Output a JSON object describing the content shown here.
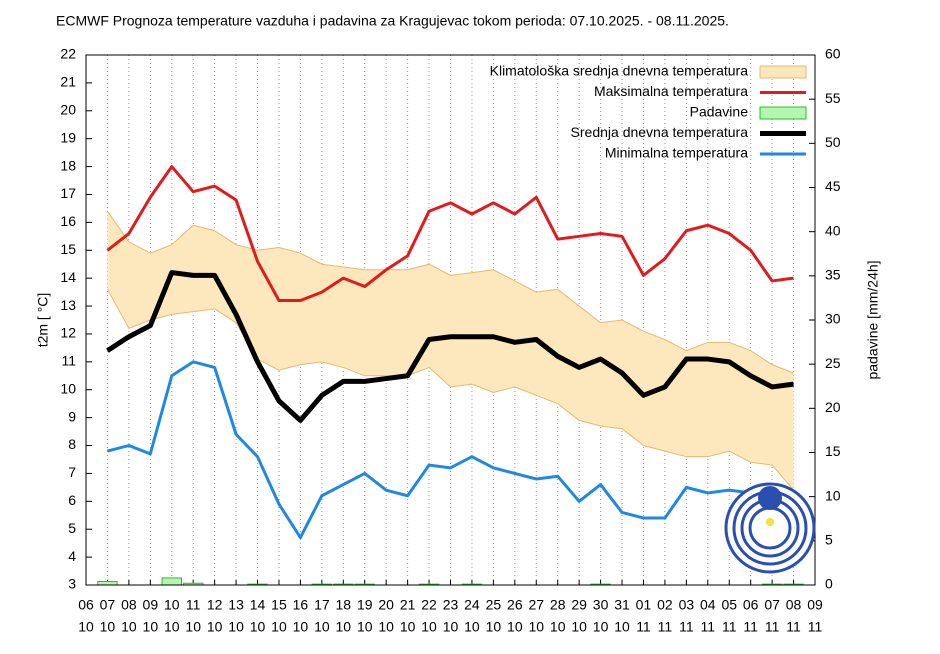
{
  "chart_data": {
    "type": "line",
    "title": "ECMWF Prognoza temperature vazduha i padavina za Kragujevac tokom perioda: 07.10.2025. - 08.11.2025.",
    "ylabel": "t2m [ °C]",
    "y2label": "padavine [mm/24h]",
    "x_days": [
      "06",
      "07",
      "08",
      "09",
      "10",
      "11",
      "12",
      "13",
      "14",
      "15",
      "16",
      "17",
      "18",
      "19",
      "20",
      "21",
      "22",
      "23",
      "24",
      "25",
      "26",
      "27",
      "28",
      "29",
      "30",
      "31",
      "01",
      "02",
      "03",
      "04",
      "05",
      "06",
      "07",
      "08",
      "09"
    ],
    "x_months": [
      "10",
      "10",
      "10",
      "10",
      "10",
      "10",
      "10",
      "10",
      "10",
      "10",
      "10",
      "10",
      "10",
      "10",
      "10",
      "10",
      "10",
      "10",
      "10",
      "10",
      "10",
      "10",
      "10",
      "10",
      "10",
      "10",
      "11",
      "11",
      "11",
      "11",
      "11",
      "11",
      "11",
      "11",
      "11"
    ],
    "ylim": [
      3,
      22
    ],
    "yticks": [
      3,
      4,
      5,
      6,
      7,
      8,
      9,
      10,
      11,
      12,
      13,
      14,
      15,
      16,
      17,
      18,
      19,
      20,
      21,
      22
    ],
    "y2lim": [
      0,
      60
    ],
    "y2ticks": [
      0,
      5,
      10,
      15,
      20,
      25,
      30,
      35,
      40,
      45,
      50,
      55,
      60
    ],
    "grid": "x",
    "legend": "top-right",
    "series": [
      {
        "name": "Klimatološka srednja dnevna temperatura",
        "type": "band",
        "color": "#fde7bd",
        "edge": "#e9b86a",
        "upper": [
          null,
          16.4,
          15.3,
          14.9,
          15.2,
          15.9,
          15.7,
          15.2,
          15.0,
          15.1,
          14.9,
          14.5,
          14.4,
          14.3,
          14.3,
          14.3,
          14.5,
          14.1,
          14.2,
          14.3,
          13.9,
          13.5,
          13.6,
          13.0,
          12.4,
          12.5,
          12.1,
          11.8,
          11.4,
          11.7,
          11.7,
          11.4,
          10.9,
          10.6,
          null
        ],
        "lower": [
          null,
          13.6,
          12.2,
          12.5,
          12.7,
          12.8,
          12.9,
          12.4,
          11.1,
          10.7,
          10.9,
          11.0,
          10.8,
          10.5,
          10.5,
          10.5,
          10.8,
          10.1,
          10.2,
          9.9,
          10.1,
          9.8,
          9.5,
          8.9,
          8.7,
          8.6,
          8.0,
          7.8,
          7.6,
          7.6,
          7.8,
          7.4,
          7.3,
          6.4,
          null
        ]
      },
      {
        "name": "Maksimalna temperatura",
        "type": "line",
        "color": "#e31a1c",
        "width": 3,
        "values": [
          null,
          15.0,
          15.6,
          16.9,
          18.0,
          17.1,
          17.3,
          16.8,
          14.6,
          13.2,
          13.2,
          13.5,
          14.0,
          13.7,
          14.3,
          14.8,
          16.4,
          16.7,
          16.3,
          16.7,
          16.3,
          16.9,
          15.4,
          15.5,
          15.6,
          15.5,
          14.1,
          14.7,
          15.7,
          15.9,
          15.6,
          15.0,
          13.9,
          14.0,
          null
        ]
      },
      {
        "name": "Padavine",
        "type": "bar",
        "axis": "y2",
        "color": "#b6f5b0",
        "edge": "#27c027",
        "values": [
          null,
          0.4,
          0,
          0,
          0.8,
          0.2,
          0,
          0,
          0.1,
          0,
          0,
          0.1,
          0.1,
          0.1,
          0,
          0,
          0.1,
          0,
          0.1,
          0,
          0,
          0,
          0,
          0,
          0.1,
          0,
          0,
          0,
          0,
          0,
          0,
          0,
          0.1,
          0.1,
          null
        ]
      },
      {
        "name": "Srednja dnevna temperatura",
        "type": "line",
        "color": "#000000",
        "width": 5,
        "values": [
          null,
          11.4,
          11.9,
          12.3,
          14.2,
          14.1,
          14.1,
          12.7,
          11.0,
          9.6,
          8.9,
          9.8,
          10.3,
          10.3,
          10.4,
          10.5,
          11.8,
          11.9,
          11.9,
          11.9,
          11.7,
          11.8,
          11.2,
          10.8,
          11.1,
          10.6,
          9.8,
          10.1,
          11.1,
          11.1,
          11.0,
          10.5,
          10.1,
          10.2,
          null
        ]
      },
      {
        "name": "Minimalna temperatura",
        "type": "line",
        "color": "#1e88e5",
        "width": 3,
        "values": [
          null,
          7.8,
          8.0,
          7.7,
          10.5,
          11.0,
          10.8,
          8.4,
          7.6,
          5.9,
          4.7,
          6.2,
          6.6,
          7.0,
          6.4,
          6.2,
          7.3,
          7.2,
          7.6,
          7.2,
          7.0,
          6.8,
          6.9,
          6.0,
          6.6,
          5.6,
          5.4,
          5.4,
          6.5,
          6.3,
          6.4,
          6.3,
          6.3,
          6.3,
          null
        ]
      }
    ]
  }
}
